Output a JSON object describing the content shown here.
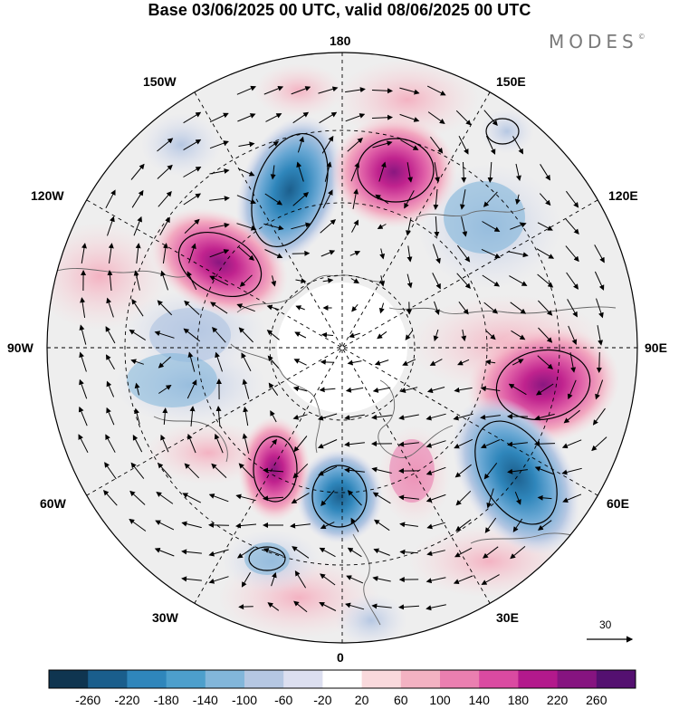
{
  "header": {
    "title": "Base 03/06/2025 00 UTC, valid 08/06/2025 00 UTC",
    "brand": "MODES",
    "brand_mark": "©"
  },
  "longitude_labels": {
    "lon_180": "180",
    "lon_150w": "150W",
    "lon_150e": "150E",
    "lon_120w": "120W",
    "lon_120e": "120E",
    "lon_90w": "90W",
    "lon_90e": "90E",
    "lon_60w": "60W",
    "lon_60e": "60E",
    "lon_30w": "30W",
    "lon_30e": "30E",
    "lon_0": "0"
  },
  "reference_vector": {
    "label": "30"
  },
  "colorbar": {
    "ticks": [
      "-260",
      "-220",
      "-180",
      "-140",
      "-100",
      "-60",
      "-20",
      "20",
      "60",
      "100",
      "140",
      "180",
      "220",
      "260"
    ],
    "colors": [
      "#0f3550",
      "#1a5e8c",
      "#2f86bb",
      "#4d9fcc",
      "#82b6da",
      "#b5c7e2",
      "#dcdff0",
      "#ffffff",
      "#f9d9dc",
      "#f3b2c2",
      "#ea7fb0",
      "#da4aa1",
      "#b3198c",
      "#861480",
      "#541070"
    ]
  },
  "map_style": {
    "neutral_fill": "#eeeeee",
    "coast_color": "#666666"
  }
}
